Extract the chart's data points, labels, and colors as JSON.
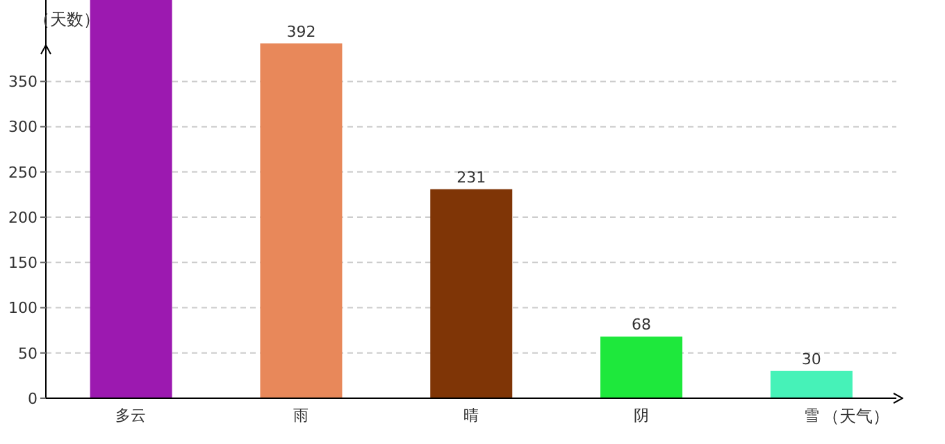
{
  "chart_data": {
    "type": "bar",
    "xlabel": "（天气）",
    "ylabel": "（天数）",
    "categories": [
      "多云",
      "雨",
      "晴",
      "阴",
      "雪"
    ],
    "values": [
      440,
      392,
      231,
      68,
      30
    ],
    "colors": [
      "#9c19b0",
      "#e8885a",
      "#7f3506",
      "#1ee83c",
      "#46f2b8"
    ],
    "value_labels": [
      null,
      "392",
      "231",
      "68",
      "30"
    ],
    "ylim": [
      0,
      440
    ],
    "yticks": [
      0,
      50,
      100,
      150,
      200,
      250,
      300,
      350
    ],
    "grid": "y"
  }
}
